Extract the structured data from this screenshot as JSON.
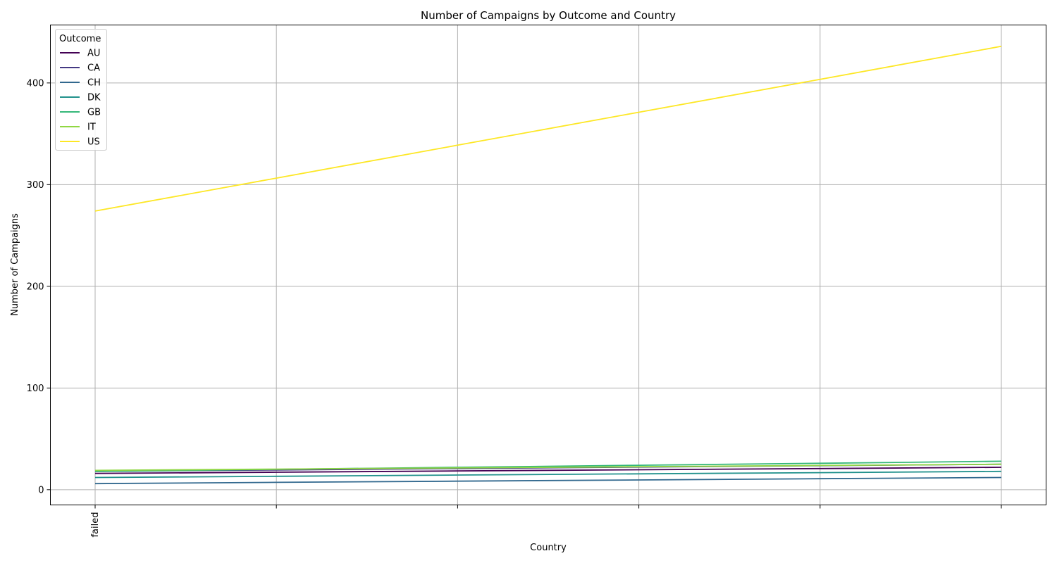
{
  "chart_data": {
    "type": "line",
    "title": "Number of Campaigns by Outcome and Country",
    "xlabel": "Country",
    "ylabel": "Number of Campaigns",
    "categories": [
      "failed",
      "",
      "",
      "",
      "",
      ""
    ],
    "ylim": [
      -15,
      457
    ],
    "yticks": [
      0,
      100,
      200,
      300,
      400
    ],
    "grid": true,
    "legend": {
      "title": "Outcome",
      "placement": "top-left"
    },
    "series": [
      {
        "name": "AU",
        "color": "#440154",
        "values": [
          16,
          17.2,
          18.4,
          19.6,
          20.8,
          22
        ]
      },
      {
        "name": "CA",
        "color": "#443983",
        "values": [
          18,
          19.4,
          20.8,
          22.2,
          23.6,
          25
        ]
      },
      {
        "name": "CH",
        "color": "#31688e",
        "values": [
          6,
          7.2,
          8.4,
          9.6,
          10.8,
          12
        ]
      },
      {
        "name": "DK",
        "color": "#21918c",
        "values": [
          12,
          13.2,
          14.4,
          15.6,
          16.8,
          18
        ]
      },
      {
        "name": "GB",
        "color": "#35b779",
        "values": [
          18,
          20,
          22,
          24,
          26,
          28
        ]
      },
      {
        "name": "IT",
        "color": "#90d743",
        "values": [
          19,
          20.2,
          21.4,
          22.6,
          23.8,
          25
        ]
      },
      {
        "name": "US",
        "color": "#fde725",
        "values": [
          274,
          306.4,
          338.8,
          371.2,
          403.6,
          436
        ]
      }
    ]
  }
}
